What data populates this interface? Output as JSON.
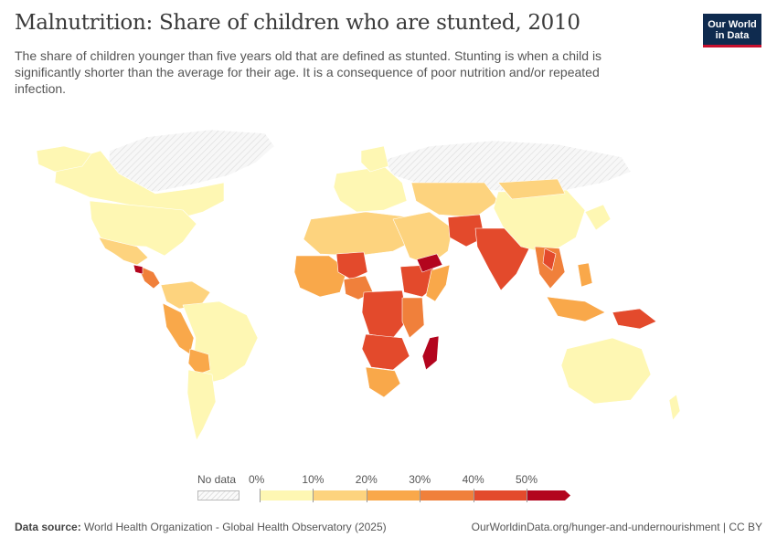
{
  "header": {
    "title": "Malnutrition: Share of children who are stunted, 2010",
    "subtitle": "The share of children younger than five years old that are defined as stunted. Stunting is when a child is significantly shorter than the average for their age. It is a consequence of poor nutrition and/or repeated infection.",
    "logo_line1": "Our World",
    "logo_line2": "in Data"
  },
  "legend": {
    "no_data_label": "No data",
    "ticks": [
      "0%",
      "10%",
      "20%",
      "30%",
      "40%",
      "50%"
    ],
    "colors": [
      "#fef7b3",
      "#fdd37e",
      "#f9a84a",
      "#f0803b",
      "#e34a2c",
      "#b3051e"
    ],
    "no_data_color": "#eeeeee"
  },
  "footer": {
    "source_label": "Data source:",
    "source_text": "World Health Organization - Global Health Observatory (2025)",
    "right_text": "OurWorldinData.org/hunger-and-undernourishment | CC BY"
  }
}
